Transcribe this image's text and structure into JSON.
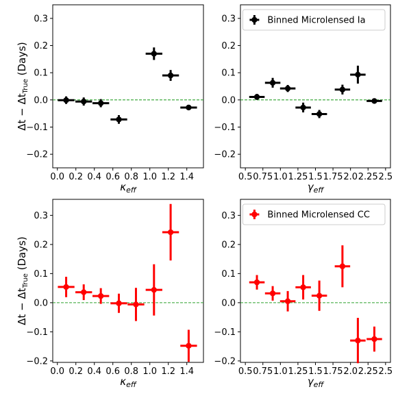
{
  "colors": {
    "ia": "#000000",
    "cc": "#ff0000",
    "zero_line": "#2ca02c"
  },
  "shared_ylabel": {
    "main": "Δt − Δt",
    "sub": "True",
    "unit": "(Days)"
  },
  "chart_data": [
    {
      "type": "scatter",
      "panel": "top-left",
      "xlabel": "κ_eff",
      "xlabel_main": "κ",
      "xlabel_sub": "eff",
      "ylabel": "Δt − Δt_True (Days)",
      "xlim": [
        -0.05,
        1.58
      ],
      "ylim": [
        -0.25,
        0.35
      ],
      "xticks": [
        0.0,
        0.2,
        0.4,
        0.6,
        0.8,
        1.0,
        1.2,
        1.4
      ],
      "xtick_labels": [
        "0.0",
        "0.2",
        "0.4",
        "0.6",
        "0.8",
        "1.0",
        "1.2",
        "1.4"
      ],
      "yticks": [
        -0.2,
        -0.1,
        0.0,
        0.1,
        0.2,
        0.3
      ],
      "ytick_labels": [
        "−0.2",
        "−0.1",
        "0.0",
        "0.1",
        "0.2",
        "0.3"
      ],
      "legend": null,
      "series": [
        {
          "color": "#000000",
          "x": [
            0.095,
            0.285,
            0.47,
            0.665,
            1.045,
            1.225,
            1.42
          ],
          "y": [
            -0.001,
            -0.006,
            -0.012,
            -0.072,
            0.17,
            0.09,
            -0.028
          ],
          "xerr": [
            0.09,
            0.09,
            0.09,
            0.09,
            0.09,
            0.09,
            0.09
          ],
          "yerr": [
            0.014,
            0.015,
            0.015,
            0.016,
            0.023,
            0.02,
            0.006
          ]
        }
      ]
    },
    {
      "type": "scatter",
      "panel": "top-right",
      "xlabel": "γ_eff",
      "xlabel_main": "γ",
      "xlabel_sub": "eff",
      "ylabel": "",
      "xlim": [
        0.43,
        2.57
      ],
      "ylim": [
        -0.25,
        0.35
      ],
      "xticks": [
        0.5,
        0.75,
        1.0,
        1.25,
        1.5,
        1.75,
        2.0,
        2.25,
        2.5
      ],
      "xtick_labels": [
        "0.5",
        "0.75",
        "1.0",
        "1.25",
        "1.5",
        "1.75",
        "2.0",
        "2.25",
        "2.5"
      ],
      "yticks": [
        -0.2,
        -0.1,
        0.0,
        0.1,
        0.2,
        0.3
      ],
      "ytick_labels": [
        "−0.2",
        "−0.1",
        "0.0",
        "0.1",
        "0.2",
        "0.3"
      ],
      "legend": "Binned Microlensed Ia",
      "legend_position": "top-right",
      "series": [
        {
          "name": "Binned Microlensed Ia",
          "color": "#000000",
          "x": [
            0.665,
            0.89,
            1.105,
            1.325,
            1.555,
            1.885,
            2.105,
            2.34
          ],
          "y": [
            0.011,
            0.063,
            0.042,
            -0.028,
            -0.052,
            0.038,
            0.093,
            -0.004
          ],
          "xerr": [
            0.11,
            0.11,
            0.11,
            0.11,
            0.11,
            0.11,
            0.11,
            0.11
          ],
          "yerr": [
            0.011,
            0.018,
            0.013,
            0.018,
            0.015,
            0.018,
            0.033,
            0.004
          ]
        }
      ]
    },
    {
      "type": "scatter",
      "panel": "bottom-left",
      "xlabel": "κ_eff",
      "xlabel_main": "κ",
      "xlabel_sub": "eff",
      "ylabel": "Δt − Δt_True (Days)",
      "xlim": [
        -0.05,
        1.58
      ],
      "ylim": [
        -0.205,
        0.355
      ],
      "xticks": [
        0.0,
        0.2,
        0.4,
        0.6,
        0.8,
        1.0,
        1.2,
        1.4
      ],
      "xtick_labels": [
        "0.0",
        "0.2",
        "0.4",
        "0.6",
        "0.8",
        "1.0",
        "1.2",
        "1.4"
      ],
      "yticks": [
        -0.2,
        -0.1,
        0.0,
        0.1,
        0.2,
        0.3
      ],
      "ytick_labels": [
        "−0.2",
        "−0.1",
        "0.0",
        "0.1",
        "0.2",
        "0.3"
      ],
      "legend": null,
      "series": [
        {
          "color": "#ff0000",
          "x": [
            0.095,
            0.285,
            0.47,
            0.665,
            0.85,
            1.045,
            1.225,
            1.42
          ],
          "y": [
            0.054,
            0.036,
            0.023,
            -0.002,
            -0.006,
            0.044,
            0.242,
            -0.148
          ],
          "xerr": [
            0.09,
            0.09,
            0.09,
            0.09,
            0.09,
            0.09,
            0.09,
            0.09
          ],
          "yerr": [
            0.035,
            0.027,
            0.027,
            0.033,
            0.057,
            0.088,
            0.097,
            0.055
          ]
        }
      ]
    },
    {
      "type": "scatter",
      "panel": "bottom-right",
      "xlabel": "γ_eff",
      "xlabel_main": "γ",
      "xlabel_sub": "eff",
      "ylabel": "",
      "xlim": [
        0.43,
        2.57
      ],
      "ylim": [
        -0.205,
        0.355
      ],
      "xticks": [
        0.5,
        0.75,
        1.0,
        1.25,
        1.5,
        1.75,
        2.0,
        2.25,
        2.5
      ],
      "xtick_labels": [
        "0.5",
        "0.75",
        "1.0",
        "1.25",
        "1.5",
        "1.75",
        "2.0",
        "2.25",
        "2.5"
      ],
      "yticks": [
        -0.2,
        -0.1,
        0.0,
        0.1,
        0.2,
        0.3
      ],
      "ytick_labels": [
        "−0.2",
        "−0.1",
        "0.0",
        "0.1",
        "0.2",
        "0.3"
      ],
      "legend": "Binned Microlensed CC",
      "legend_position": "top-right",
      "series": [
        {
          "name": "Binned Microlensed CC",
          "color": "#ff0000",
          "x": [
            0.665,
            0.89,
            1.105,
            1.325,
            1.555,
            1.885,
            2.105,
            2.34
          ],
          "y": [
            0.07,
            0.032,
            0.005,
            0.053,
            0.024,
            0.125,
            -0.13,
            -0.125
          ],
          "xerr": [
            0.11,
            0.11,
            0.11,
            0.11,
            0.11,
            0.11,
            0.11,
            0.11
          ],
          "yerr": [
            0.025,
            0.025,
            0.035,
            0.042,
            0.052,
            0.072,
            0.078,
            0.043
          ]
        }
      ]
    }
  ]
}
